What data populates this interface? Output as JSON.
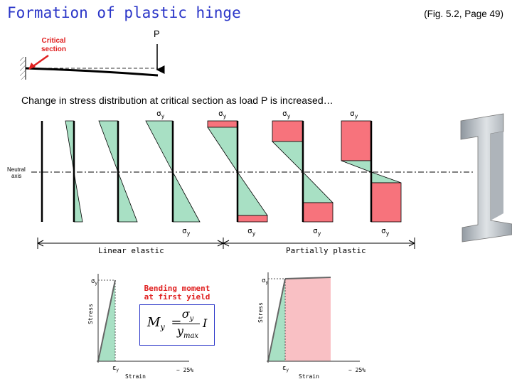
{
  "title": "Formation of plastic hinge",
  "figure_ref": "(Fig. 5.2, Page 49)",
  "beam": {
    "load_label": "P",
    "critical_label_1": "Critical",
    "critical_label_2": "section"
  },
  "subtitle": "Change in stress distribution at critical section as load P is increased…",
  "neutral_axis": {
    "line1": "Neutral",
    "line2": "axis"
  },
  "sigma_label": "σ",
  "sigma_sub": "y",
  "regions": {
    "linear": "Linear elastic",
    "plastic": "Partially plastic"
  },
  "graph1": {
    "title_1": "Bending moment",
    "title_2": "at first yield",
    "formula_lhs": "M",
    "formula_lhs_sub": "y",
    "formula_eq": "=",
    "formula_num": "σ",
    "formula_num_sub": "y",
    "formula_den": "y",
    "formula_den_sub": "max",
    "formula_rhs": "I",
    "ylabel": "Stress",
    "xlabel": "Strain",
    "y_tick": "σ",
    "y_tick_sub": "y",
    "x_tick": "ε",
    "x_tick_sub": "y",
    "x_end": "~ 25%"
  },
  "graph2": {
    "ylabel": "Stress",
    "xlabel": "Strain",
    "y_tick": "σ",
    "y_tick_sub": "y",
    "x_tick": "ε",
    "x_tick_sub": "y",
    "x_end": "~ 25%"
  },
  "colors": {
    "elastic": "#a8e0c4",
    "plastic": "#f7737c",
    "plastic_light": "#f9c0c4",
    "title": "#2a35c8",
    "accent": "#e02020"
  }
}
